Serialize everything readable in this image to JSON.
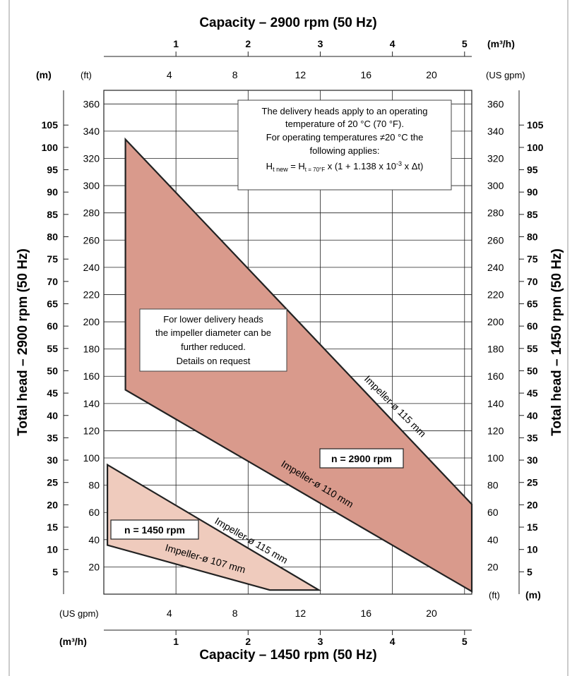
{
  "colors": {
    "area_2900": "#d99a8c",
    "area_1450": "#efcbbd",
    "edge": "#222222",
    "grid": "#222222"
  },
  "labels": {
    "top_title": "Capacity – 2900 rpm (50 Hz)",
    "bottom_title": "Capacity – 1450 rpm (50 Hz)",
    "left_title": "Total head – 2900 rpm (50 Hz)",
    "right_title": "Total head – 1450 rpm (50 Hz)",
    "unit_m3h_top": "(m³/h)",
    "unit_m3h_bottom": "(m³/h)",
    "unit_usgpm_top": "(US gpm)",
    "unit_usgpm_bottom": "(US gpm)",
    "unit_m_left": "(m)",
    "unit_ft_left": "(ft)",
    "unit_ft_right": "(ft)",
    "unit_m_right": "(m)"
  },
  "notes": {
    "temperature": [
      "The delivery heads apply to an operating",
      "temperature of 20 °C (70 °F).",
      "For operating temperatures ≠20 °C the",
      "following applies:"
    ],
    "formula": "Ht new = Ht = 70°F x (1 + 1.138 x 10-3 x Δt)",
    "formula_parts": {
      "h1": "H",
      "s1": "t new",
      "eq": " = H",
      "s2": "t = 70°F",
      "mid": " x (1 + 1.138 x 10",
      "exp": "-3",
      "end": " x Δt)"
    },
    "impeller": [
      "For lower delivery heads",
      "the impeller diameter can be",
      "further reduced.",
      "Details on request"
    ]
  },
  "chart_data": {
    "type": "area",
    "x_axis_top": {
      "label": "Capacity – 2900 rpm (50 Hz)",
      "unit": "m³/h",
      "ticks": [
        1,
        2,
        3,
        4,
        5
      ],
      "range": [
        0,
        5.1
      ]
    },
    "x_axis_usgpm_top": {
      "unit": "US gpm",
      "ticks": [
        4,
        8,
        12,
        16,
        20
      ]
    },
    "x_axis_bottom": {
      "label": "Capacity – 1450 rpm (50 Hz)",
      "unit": "m³/h",
      "ticks": [
        1,
        2,
        3,
        4,
        5
      ],
      "range": [
        0,
        5.1
      ]
    },
    "x_axis_usgpm_bottom": {
      "unit": "US gpm",
      "ticks": [
        4,
        8,
        12,
        16,
        20
      ]
    },
    "y_axis_ft": {
      "unit": "ft",
      "ticks": [
        20,
        40,
        60,
        80,
        100,
        120,
        140,
        160,
        180,
        200,
        220,
        240,
        260,
        280,
        300,
        320,
        340,
        360
      ],
      "range": [
        0,
        370
      ]
    },
    "y_axis_m_left": {
      "label": "Total head – 2900 rpm (50 Hz)",
      "unit": "m",
      "ticks": [
        5,
        10,
        15,
        20,
        25,
        30,
        35,
        40,
        45,
        50,
        55,
        60,
        65,
        70,
        75,
        80,
        85,
        90,
        95,
        100,
        105
      ]
    },
    "y_axis_m_right": {
      "label": "Total head – 1450 rpm (50 Hz)",
      "unit": "m",
      "ticks": [
        5,
        10,
        15,
        20,
        25,
        30,
        35,
        40,
        45,
        50,
        55,
        60,
        65,
        70,
        75,
        80,
        85,
        90,
        95,
        100,
        105
      ]
    },
    "grid": true,
    "series": [
      {
        "name": "n = 2900 rpm",
        "polygon_m3h_ft": [
          [
            0.3,
            334
          ],
          [
            5.1,
            66
          ],
          [
            5.1,
            2
          ],
          [
            0.3,
            150
          ]
        ],
        "curves": [
          {
            "label": "Impeller-ø 115 mm",
            "from": [
              0.3,
              334
            ],
            "to": [
              5.1,
              66
            ]
          },
          {
            "label": "Impeller-ø 110 mm",
            "from": [
              0.3,
              150
            ],
            "to": [
              5.1,
              2
            ]
          }
        ]
      },
      {
        "name": "n = 1450 rpm",
        "polygon_m3h_ft": [
          [
            0.05,
            95
          ],
          [
            2.98,
            3
          ],
          [
            2.3,
            3
          ],
          [
            0.05,
            36
          ]
        ],
        "curves": [
          {
            "label": "Impeller-ø 115 mm",
            "from": [
              0.05,
              95
            ],
            "to": [
              2.98,
              3
            ]
          },
          {
            "label": "Impeller-ø 107 mm",
            "from": [
              0.05,
              36
            ],
            "to": [
              2.3,
              3
            ]
          }
        ]
      }
    ]
  }
}
